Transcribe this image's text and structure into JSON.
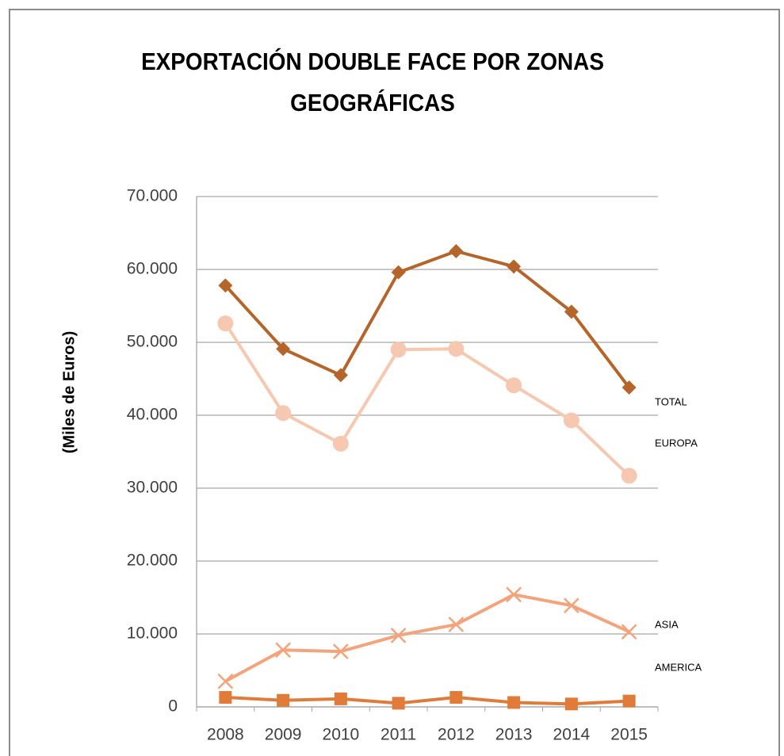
{
  "chart_data": {
    "type": "line",
    "title": "EXPORTACIÓN DOUBLE FACE POR ZONAS GEOGRÁFICAS",
    "y_label": "(Miles de Euros)",
    "categories": [
      "2008",
      "2009",
      "2010",
      "2011",
      "2012",
      "2013",
      "2014",
      "2015"
    ],
    "series": [
      {
        "name": "TOTAL",
        "color": "#b5652a",
        "marker": "diamond",
        "values": [
          57800,
          49100,
          45500,
          59600,
          62500,
          60400,
          54200,
          43800
        ]
      },
      {
        "name": "EUROPA",
        "color": "#f6c8b0",
        "marker": "circle",
        "values": [
          52600,
          40300,
          36100,
          49000,
          49100,
          44100,
          39300,
          31700
        ]
      },
      {
        "name": "ASIA",
        "color": "#f4a47c",
        "marker": "x",
        "values": [
          3500,
          7800,
          7600,
          9800,
          11300,
          15400,
          13900,
          10300
        ]
      },
      {
        "name": "AMERICA",
        "color": "#e07b39",
        "marker": "square",
        "values": [
          1300,
          900,
          1100,
          500,
          1300,
          600,
          400,
          800
        ]
      }
    ],
    "ylim": [
      0,
      70000
    ],
    "yticks": [
      0,
      {
        "value": 10000,
        "label": "10.000"
      },
      {
        "value": 20000,
        "label": "20.000"
      },
      {
        "value": 30000,
        "label": "30.000"
      },
      {
        "value": 40000,
        "label": "40.000"
      },
      {
        "value": 50000,
        "label": "50.000"
      },
      {
        "value": 60000,
        "label": "60.000"
      },
      {
        "value": 70000,
        "label": "70.000"
      }
    ],
    "grid": true
  }
}
